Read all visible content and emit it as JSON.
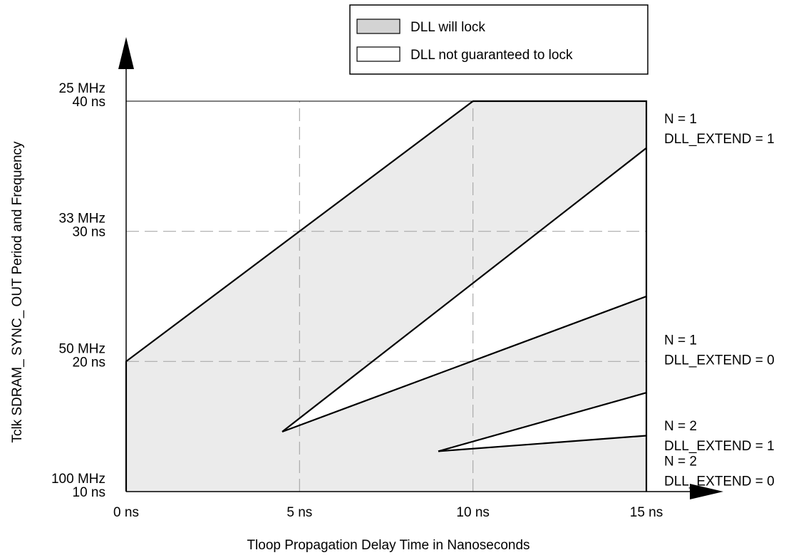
{
  "chart_data": {
    "type": "area",
    "xlabel": "Tloop Propagation Delay Time in Nanoseconds",
    "ylabel": "Tclk SDRAM_ SYNC_ OUT Period and Frequency",
    "xlim": [
      0,
      15
    ],
    "ylim": [
      10,
      40
    ],
    "x_ticks": [
      {
        "value": 0,
        "label": "0 ns"
      },
      {
        "value": 5,
        "label": "5 ns"
      },
      {
        "value": 10,
        "label": "10 ns"
      },
      {
        "value": 15,
        "label": "15 ns"
      }
    ],
    "y_ticks": [
      {
        "value": 40,
        "freq": "25 MHz",
        "period": "40 ns"
      },
      {
        "value": 30,
        "freq": "33 MHz",
        "period": "30 ns"
      },
      {
        "value": 20,
        "freq": "50 MHz",
        "period": "20 ns"
      },
      {
        "value": 10,
        "freq": "100 MHz",
        "period": "10 ns"
      }
    ],
    "grid": "dashed at x=5,10 and y=20,30",
    "legend": {
      "placement": "top-center",
      "entries": [
        {
          "label": "DLL will lock",
          "color": "#d3d3d3"
        },
        {
          "label": "DLL not guaranteed to lock",
          "color": "#ffffff"
        }
      ]
    },
    "lock_region_fill": "#ebebeb",
    "lock_region": [
      [
        0,
        10
      ],
      [
        0,
        20
      ],
      [
        10,
        40
      ],
      [
        15,
        40
      ],
      [
        15,
        10
      ]
    ],
    "unlocked_regions": [
      [
        [
          4.5,
          14.6
        ],
        [
          15,
          36.4
        ],
        [
          15,
          25
        ]
      ],
      [
        [
          9,
          13.1
        ],
        [
          15,
          17.6
        ],
        [
          15,
          14.3
        ]
      ]
    ],
    "boundary_lines": [
      {
        "points": [
          [
            0,
            10
          ],
          [
            0,
            20
          ],
          [
            10,
            40
          ],
          [
            15,
            40
          ],
          [
            15,
            10
          ]
        ]
      },
      {
        "points": [
          [
            4.5,
            14.6
          ],
          [
            15,
            36.4
          ]
        ]
      },
      {
        "points": [
          [
            4.5,
            14.6
          ],
          [
            15,
            25
          ]
        ]
      },
      {
        "points": [
          [
            9,
            13.1
          ],
          [
            15,
            17.6
          ]
        ]
      },
      {
        "points": [
          [
            9,
            13.1
          ],
          [
            15,
            14.3
          ]
        ]
      }
    ],
    "annotations": [
      {
        "y": 38.3,
        "lines": [
          "N = 1",
          "DLL_EXTEND = 1"
        ]
      },
      {
        "y": 21.3,
        "lines": [
          "N = 1",
          "DLL_EXTEND = 0"
        ]
      },
      {
        "y": 14.7,
        "lines": [
          "N = 2",
          "DLL_EXTEND = 1"
        ]
      },
      {
        "y": 12.0,
        "lines": [
          "N = 2",
          "DLL_EXTEND = 0"
        ]
      }
    ]
  }
}
